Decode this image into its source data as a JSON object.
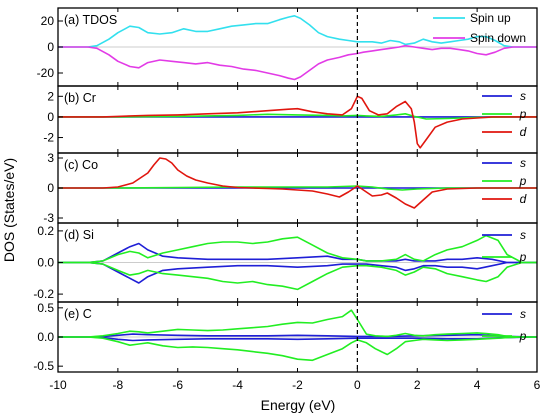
{
  "figure": {
    "ylabel": "DOS (States/eV)",
    "xlabel": "Energy (eV)",
    "x_ticks": [
      "-10",
      "-8",
      "-6",
      "-4",
      "-2",
      "0",
      "2",
      "4",
      "6"
    ]
  },
  "colors": {
    "spin_up": "#33e0ee",
    "spin_down": "#e23be6",
    "s": "#1f1fd6",
    "p": "#22ee22",
    "d": "#e0160e",
    "axis": "#000000"
  },
  "chart_data": [
    {
      "type": "line",
      "panel_label": "(a) TDOS",
      "xlim": [
        -10,
        6
      ],
      "ylim": [
        -30,
        30
      ],
      "y_ticks": [
        {
          "v": -20,
          "t": "-20"
        },
        {
          "v": 0,
          "t": "0"
        },
        {
          "v": 20,
          "t": "20"
        }
      ],
      "fermi_level": 0,
      "legend_position": "top-right",
      "series": [
        {
          "name": "Spin up",
          "color_key": "spin_up",
          "x": [
            -10,
            -9,
            -8.7,
            -8.3,
            -8,
            -7.6,
            -7.3,
            -7,
            -6.6,
            -6.2,
            -5.8,
            -5.4,
            -5,
            -4.6,
            -4.2,
            -3.8,
            -3.4,
            -3,
            -2.6,
            -2.3,
            -2.1,
            -1.9,
            -1.6,
            -1.3,
            -1,
            -0.6,
            -0.3,
            0,
            0.2,
            0.5,
            0.8,
            1.1,
            1.4,
            1.6,
            1.9,
            2.2,
            2.5,
            2.8,
            3.1,
            3.4,
            3.7,
            4,
            4.3,
            4.6,
            4.9,
            5.2,
            5.5,
            6
          ],
          "y": [
            0,
            0,
            1,
            6,
            11,
            16,
            15,
            11,
            10,
            11,
            14,
            12,
            12,
            14,
            16,
            17,
            18,
            18,
            21,
            23,
            24,
            22,
            17,
            11,
            8,
            6,
            5,
            4,
            4,
            4,
            3,
            5,
            4,
            2,
            3,
            6,
            4,
            3,
            4,
            5,
            6,
            8,
            8,
            5,
            1,
            0,
            0,
            0
          ]
        },
        {
          "name": "Spin down",
          "color_key": "spin_down",
          "x": [
            -10,
            -9,
            -8.7,
            -8.3,
            -8,
            -7.6,
            -7.3,
            -7,
            -6.6,
            -6.2,
            -5.8,
            -5.4,
            -5,
            -4.6,
            -4.2,
            -3.8,
            -3.4,
            -3,
            -2.6,
            -2.3,
            -2.1,
            -1.9,
            -1.6,
            -1.3,
            -1,
            -0.6,
            -0.3,
            0,
            0.2,
            0.5,
            0.8,
            1.1,
            1.4,
            1.6,
            1.9,
            2.2,
            2.5,
            2.8,
            3.1,
            3.4,
            3.7,
            4,
            4.3,
            4.6,
            4.9,
            5.2,
            5.5,
            6
          ],
          "y": [
            0,
            0,
            -1,
            -6,
            -11,
            -15,
            -16,
            -12,
            -10,
            -11,
            -12,
            -13,
            -12,
            -14,
            -15,
            -17,
            -18,
            -20,
            -22,
            -24,
            -25,
            -23,
            -18,
            -13,
            -10,
            -8,
            -6,
            -5,
            -4,
            -3,
            -2,
            -1,
            0,
            1,
            0,
            -1,
            -2,
            -1,
            -1,
            -2,
            -3,
            -5,
            -6,
            -4,
            -1,
            0,
            0,
            0
          ]
        }
      ]
    },
    {
      "type": "line",
      "panel_label": "(b) Cr",
      "xlim": [
        -10,
        6
      ],
      "ylim": [
        -3.5,
        3
      ],
      "y_ticks": [
        {
          "v": -2,
          "t": "-2"
        },
        {
          "v": 0,
          "t": "0"
        },
        {
          "v": 2,
          "t": "2"
        }
      ],
      "fermi_level": 0,
      "legend_position": "top-right",
      "series": [
        {
          "name": "s",
          "color_key": "s",
          "x": [
            -10,
            6
          ],
          "y": [
            0,
            0
          ]
        },
        {
          "name": "p",
          "color_key": "p",
          "x": [
            -10,
            -8,
            -6,
            -4,
            -3,
            -2,
            -1,
            -0.5,
            0,
            0.3,
            0.8,
            1.3,
            1.6,
            1.9,
            2.3,
            3,
            4,
            5,
            6
          ],
          "y": [
            0,
            0,
            0.05,
            0.15,
            0.25,
            0.2,
            0.15,
            0.1,
            0.15,
            0.1,
            0.05,
            0.2,
            0.3,
            0.05,
            -0.2,
            -0.15,
            -0.05,
            0,
            0
          ]
        },
        {
          "name": "d",
          "color_key": "d",
          "x": [
            -10,
            -8.5,
            -8,
            -7,
            -6,
            -5,
            -4,
            -3,
            -2.3,
            -2,
            -1.5,
            -1,
            -0.5,
            -0.2,
            0,
            0.15,
            0.4,
            0.7,
            1,
            1.3,
            1.6,
            1.8,
            1.9,
            2,
            2.1,
            2.3,
            2.6,
            3,
            3.5,
            4,
            4.5,
            5,
            6
          ],
          "y": [
            0,
            0,
            0.05,
            0.15,
            0.2,
            0.3,
            0.4,
            0.6,
            0.75,
            0.8,
            0.5,
            0.3,
            0.2,
            0.8,
            2.0,
            1.8,
            0.6,
            0.2,
            0.3,
            1.0,
            1.5,
            0.8,
            -0.5,
            -2.6,
            -3.0,
            -2.2,
            -1.0,
            -0.5,
            -0.2,
            -0.1,
            0,
            0,
            0
          ]
        }
      ]
    },
    {
      "type": "line",
      "panel_label": "(c) Co",
      "xlim": [
        -10,
        6
      ],
      "ylim": [
        -3.5,
        3.5
      ],
      "y_ticks": [
        {
          "v": -3,
          "t": "-3"
        },
        {
          "v": 0,
          "t": "0"
        },
        {
          "v": 3,
          "t": "3"
        }
      ],
      "fermi_level": 0,
      "legend_position": "top-right",
      "series": [
        {
          "name": "s",
          "color_key": "s",
          "x": [
            -10,
            6
          ],
          "y": [
            0,
            0
          ]
        },
        {
          "name": "p",
          "color_key": "p",
          "x": [
            -10,
            -8,
            -6,
            -4,
            -2,
            -1,
            0,
            0.5,
            1,
            1.5,
            2,
            3,
            4,
            6
          ],
          "y": [
            0,
            0,
            0.05,
            0.1,
            0.1,
            0.1,
            0.2,
            0.1,
            -0.1,
            -0.2,
            -0.1,
            0,
            0,
            0
          ]
        },
        {
          "name": "d",
          "color_key": "d",
          "x": [
            -10,
            -8.5,
            -8,
            -7.5,
            -7,
            -6.8,
            -6.6,
            -6.4,
            -6.2,
            -6,
            -5.7,
            -5.4,
            -5,
            -4.5,
            -4,
            -3.5,
            -3,
            -2.5,
            -2,
            -1.5,
            -1,
            -0.6,
            -0.3,
            0,
            0.2,
            0.5,
            0.8,
            1,
            1.3,
            1.6,
            1.9,
            2.2,
            2.5,
            3,
            4,
            5,
            6
          ],
          "y": [
            0,
            0,
            0.1,
            0.5,
            1.5,
            2.3,
            3.0,
            2.9,
            2.5,
            1.8,
            1.2,
            0.8,
            0.5,
            0.2,
            0.05,
            0,
            -0.05,
            -0.1,
            -0.2,
            -0.3,
            -0.6,
            -0.9,
            -0.4,
            0.2,
            -0.2,
            -0.8,
            -0.7,
            -0.5,
            -1.0,
            -1.6,
            -2.0,
            -1.2,
            -0.4,
            -0.1,
            0,
            0,
            0
          ]
        }
      ]
    },
    {
      "type": "line",
      "panel_label": "(d) Si",
      "xlim": [
        -10,
        6
      ],
      "ylim": [
        -0.25,
        0.25
      ],
      "y_ticks": [
        {
          "v": -0.2,
          "t": "-0.2"
        },
        {
          "v": 0,
          "t": "0.0"
        },
        {
          "v": 0.2,
          "t": "0.2"
        }
      ],
      "fermi_level": 0,
      "legend_position": "top-right",
      "series": [
        {
          "name": "s",
          "color_key": "s",
          "x": [
            -10,
            -9,
            -8.5,
            -8,
            -7.6,
            -7.3,
            -7,
            -6.5,
            -6,
            -5,
            -4,
            -3,
            -2,
            -1,
            -0.5,
            0,
            0.3,
            0.8,
            1.3,
            1.6,
            1.9,
            2.2,
            2.6,
            3,
            3.5,
            4,
            4.5,
            5,
            6
          ],
          "y": [
            0,
            0,
            0.01,
            0.06,
            0.1,
            0.12,
            0.08,
            0.04,
            0.03,
            0.02,
            0.02,
            0.02,
            0.03,
            0.04,
            0.02,
            0.02,
            0.01,
            0.01,
            0.01,
            0.02,
            0.01,
            0.01,
            0.01,
            0.02,
            0.02,
            0.03,
            0.02,
            0,
            0
          ]
        },
        {
          "name": "s",
          "color_key": "s",
          "x": [
            -10,
            -9,
            -8.5,
            -8,
            -7.6,
            -7.3,
            -7,
            -6.5,
            -6,
            -5,
            -4,
            -3,
            -2,
            -1,
            -0.5,
            0,
            0.3,
            0.8,
            1.3,
            1.6,
            1.9,
            2.2,
            2.6,
            3,
            3.5,
            4,
            4.5,
            5,
            6
          ],
          "y": [
            0,
            0,
            -0.01,
            -0.06,
            -0.1,
            -0.13,
            -0.09,
            -0.05,
            -0.04,
            -0.03,
            -0.02,
            -0.02,
            -0.03,
            -0.02,
            -0.01,
            -0.01,
            -0.01,
            -0.02,
            -0.03,
            -0.05,
            -0.04,
            -0.02,
            -0.02,
            -0.03,
            -0.03,
            -0.04,
            -0.02,
            0,
            0
          ]
        },
        {
          "name": "p",
          "color_key": "p",
          "x": [
            -10,
            -9,
            -8.5,
            -8,
            -7.6,
            -7.3,
            -7,
            -6.5,
            -6,
            -5.5,
            -5,
            -4.5,
            -4,
            -3.5,
            -3,
            -2.5,
            -2,
            -1.5,
            -1,
            -0.5,
            0,
            0.3,
            0.8,
            1.3,
            1.6,
            1.9,
            2.2,
            2.6,
            3,
            3.5,
            4,
            4.3,
            4.7,
            5,
            5.5,
            6
          ],
          "y": [
            0,
            0,
            0.01,
            0.05,
            0.07,
            0.06,
            0.03,
            0.06,
            0.08,
            0.1,
            0.12,
            0.13,
            0.13,
            0.12,
            0.13,
            0.15,
            0.16,
            0.11,
            0.06,
            0.03,
            0.02,
            0.01,
            0.01,
            0.02,
            0.05,
            0.02,
            0.01,
            0.05,
            0.08,
            0.1,
            0.14,
            0.17,
            0.14,
            0.05,
            0,
            0
          ]
        },
        {
          "name": "p",
          "color_key": "p",
          "x": [
            -10,
            -9,
            -8.5,
            -8,
            -7.6,
            -7.3,
            -7,
            -6.5,
            -6,
            -5.5,
            -5,
            -4.5,
            -4,
            -3.5,
            -3,
            -2.5,
            -2,
            -1.5,
            -1,
            -0.5,
            0,
            0.3,
            0.8,
            1.3,
            1.6,
            1.9,
            2.2,
            2.6,
            3,
            3.5,
            4,
            4.3,
            4.7,
            5,
            5.5,
            6
          ],
          "y": [
            0,
            0,
            -0.01,
            -0.05,
            -0.08,
            -0.07,
            -0.05,
            -0.07,
            -0.08,
            -0.09,
            -0.1,
            -0.12,
            -0.13,
            -0.12,
            -0.14,
            -0.15,
            -0.17,
            -0.12,
            -0.07,
            -0.03,
            -0.02,
            -0.02,
            -0.03,
            -0.05,
            -0.08,
            -0.06,
            -0.03,
            -0.04,
            -0.07,
            -0.09,
            -0.11,
            -0.12,
            -0.09,
            -0.03,
            0,
            0
          ]
        }
      ]
    },
    {
      "type": "line",
      "panel_label": "(e) C",
      "xlim": [
        -10,
        6
      ],
      "ylim": [
        -0.6,
        0.6
      ],
      "y_ticks": [
        {
          "v": -0.5,
          "t": "-0.5"
        },
        {
          "v": 0,
          "t": "0.0"
        },
        {
          "v": 0.5,
          "t": "0.5"
        }
      ],
      "fermi_level": 0,
      "legend_position": "top-right",
      "series": [
        {
          "name": "s",
          "color_key": "s",
          "x": [
            -10,
            -9,
            -8.5,
            -8,
            -7.5,
            -7,
            -6,
            -5,
            -4,
            -3,
            -2,
            -1,
            0,
            1,
            2,
            3,
            4,
            5,
            6
          ],
          "y": [
            0,
            0,
            0.01,
            0.03,
            0.05,
            0.04,
            0.03,
            0.02,
            0.02,
            0.02,
            0.03,
            0.02,
            0.01,
            0.01,
            0.02,
            0.03,
            0.04,
            0.01,
            0
          ]
        },
        {
          "name": "s",
          "color_key": "s",
          "x": [
            -10,
            -9,
            -8.5,
            -8,
            -7.5,
            -7,
            -6,
            -5,
            -4,
            -3,
            -2,
            -1,
            0,
            1,
            2,
            3,
            4,
            5,
            6
          ],
          "y": [
            0,
            0,
            -0.01,
            -0.04,
            -0.06,
            -0.05,
            -0.04,
            -0.03,
            -0.03,
            -0.03,
            -0.04,
            -0.03,
            -0.02,
            -0.02,
            -0.02,
            -0.03,
            -0.03,
            -0.01,
            0
          ]
        },
        {
          "name": "p",
          "color_key": "p",
          "x": [
            -10,
            -9,
            -8.5,
            -8,
            -7.6,
            -7.3,
            -7,
            -6.5,
            -6,
            -5.5,
            -5,
            -4.5,
            -4,
            -3.5,
            -3,
            -2.5,
            -2,
            -1.5,
            -1,
            -0.5,
            -0.2,
            0,
            0.3,
            0.6,
            1,
            1.3,
            1.6,
            1.9,
            2.2,
            2.6,
            3,
            3.5,
            4,
            4.3,
            4.7,
            5,
            5.5,
            6
          ],
          "y": [
            0,
            0,
            0.02,
            0.06,
            0.1,
            0.09,
            0.07,
            0.1,
            0.13,
            0.12,
            0.11,
            0.12,
            0.14,
            0.16,
            0.18,
            0.22,
            0.25,
            0.24,
            0.3,
            0.35,
            0.46,
            0.3,
            0.05,
            0.02,
            0.01,
            0.03,
            0.06,
            0.03,
            0.02,
            0.04,
            0.05,
            0.06,
            0.07,
            0.06,
            0.04,
            0.01,
            0,
            0
          ]
        },
        {
          "name": "p",
          "color_key": "p",
          "x": [
            -10,
            -9,
            -8.5,
            -8,
            -7.6,
            -7.3,
            -7,
            -6.5,
            -6,
            -5.5,
            -5,
            -4.5,
            -4,
            -3.5,
            -3,
            -2.5,
            -2,
            -1.5,
            -1,
            -0.5,
            -0.2,
            0,
            0.3,
            0.6,
            1,
            1.3,
            1.6,
            1.9,
            2.2,
            2.6,
            3,
            3.5,
            4,
            4.3,
            4.7,
            5,
            5.5,
            6
          ],
          "y": [
            0,
            0,
            -0.02,
            -0.08,
            -0.14,
            -0.12,
            -0.1,
            -0.15,
            -0.18,
            -0.17,
            -0.18,
            -0.2,
            -0.22,
            -0.25,
            -0.28,
            -0.32,
            -0.38,
            -0.4,
            -0.3,
            -0.2,
            -0.1,
            -0.05,
            -0.1,
            -0.2,
            -0.3,
            -0.2,
            -0.08,
            -0.06,
            -0.04,
            -0.05,
            -0.06,
            -0.05,
            -0.04,
            -0.03,
            -0.02,
            -0.01,
            0,
            0
          ]
        }
      ]
    }
  ]
}
